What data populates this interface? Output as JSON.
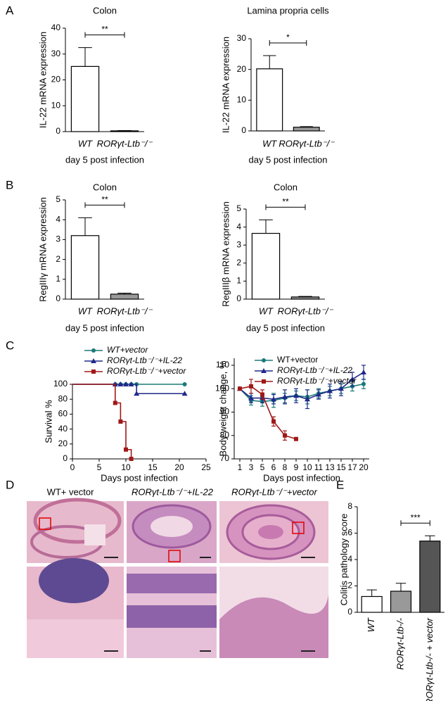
{
  "panels": [
    "A",
    "B",
    "C",
    "D",
    "E"
  ],
  "histology": {
    "labels": [
      "WT+ vector",
      "RORγt-Ltb⁻/⁻+IL-22",
      "RORγt-Ltb⁻/⁻+vector"
    ]
  },
  "chart_data": [
    {
      "type": "bar",
      "title": "Colon",
      "categories": [
        "WT",
        "RORγt-Ltb⁻/⁻"
      ],
      "values": [
        25.2,
        0.3
      ],
      "errors": [
        7.3,
        0.1
      ],
      "colors": [
        "#ffffff",
        "#999999"
      ],
      "ylabel": "IL-22 mRNA expression",
      "xlabel": "day 5 post infection",
      "ylim": [
        0,
        40
      ],
      "yticks": [
        0,
        10,
        20,
        30,
        40
      ],
      "significance": "**"
    },
    {
      "type": "bar",
      "title": "Lamina propria cells",
      "categories": [
        "WT",
        "RORγt-Ltb⁻/⁻"
      ],
      "values": [
        20.2,
        1.2
      ],
      "errors": [
        4.3,
        0.2
      ],
      "colors": [
        "#ffffff",
        "#999999"
      ],
      "ylabel": "IL-22 mRNA expression",
      "xlabel": "day 5 post infection",
      "ylim": [
        0,
        30
      ],
      "yticks": [
        0,
        10,
        20,
        30
      ],
      "significance": "*"
    },
    {
      "type": "bar",
      "title": "Colon",
      "categories": [
        "WT",
        "RORγt-Ltb⁻/⁻"
      ],
      "values": [
        3.2,
        0.25
      ],
      "errors": [
        0.9,
        0.05
      ],
      "colors": [
        "#ffffff",
        "#999999"
      ],
      "ylabel": "RegIIIγ mRNA expression",
      "xlabel": "day 5 post infection",
      "ylim": [
        0,
        5
      ],
      "yticks": [
        0,
        1,
        2,
        3,
        4,
        5
      ],
      "significance": "**"
    },
    {
      "type": "bar",
      "title": "Colon",
      "categories": [
        "WT",
        "RORγt-Ltb⁻/⁻"
      ],
      "values": [
        3.65,
        0.12
      ],
      "errors": [
        0.75,
        0.03
      ],
      "colors": [
        "#ffffff",
        "#999999"
      ],
      "ylabel": "RegIIIβ mRNA expression",
      "xlabel": "day 5 post infection",
      "ylim": [
        0,
        5
      ],
      "yticks": [
        0,
        1,
        2,
        3,
        4,
        5
      ],
      "significance": "**"
    },
    {
      "type": "line",
      "step": true,
      "ylabel": "Survival %",
      "xlabel": "Days post infection",
      "xlim": [
        0,
        25
      ],
      "xticks": [
        0,
        5,
        10,
        15,
        20,
        25
      ],
      "ylim": [
        0,
        100
      ],
      "yticks": [
        0,
        20,
        40,
        60,
        80,
        100
      ],
      "series": [
        {
          "name": "WT+vector",
          "color": "#1b7a78",
          "marker": "circle",
          "x": [
            0,
            8,
            9,
            10,
            11,
            12,
            21
          ],
          "values": [
            100,
            100,
            100,
            100,
            100,
            100,
            100
          ]
        },
        {
          "name": "RORγt-Ltb⁻/⁻+IL-22",
          "color": "#1f2a8a",
          "marker": "triangle",
          "x": [
            0,
            8,
            9,
            10,
            11,
            12,
            21
          ],
          "values": [
            100,
            100,
            100,
            100,
            100,
            87.5,
            87.5
          ]
        },
        {
          "name": "RORγt-Ltb⁻/⁻+vector",
          "color": "#a01818",
          "marker": "square",
          "x": [
            0,
            8,
            9,
            10,
            11
          ],
          "values": [
            100,
            75,
            50,
            12.5,
            0
          ]
        }
      ]
    },
    {
      "type": "line",
      "step": false,
      "ylabel": "Body weight change, %",
      "xlabel": "Days post infection",
      "categories": [
        "1",
        "3",
        "5",
        "6",
        "8",
        "9",
        "10",
        "11",
        "13",
        "15",
        "17",
        "20"
      ],
      "ylim": [
        70,
        113
      ],
      "yticks": [
        70,
        80,
        90,
        100,
        110
      ],
      "series": [
        {
          "name": "WT+vector",
          "color": "#1b7a78",
          "marker": "circle",
          "values": [
            100,
            95,
            94.5,
            95,
            96,
            97,
            96.5,
            98,
            99,
            100,
            101,
            102
          ],
          "errors": [
            0.5,
            2,
            2,
            3,
            2,
            2,
            3,
            2,
            2,
            2,
            2,
            2
          ]
        },
        {
          "name": "RORγt-Ltb⁻/⁻+IL-22",
          "color": "#1f2a8a",
          "marker": "triangle",
          "values": [
            100,
            96,
            96,
            95.5,
            96.5,
            97,
            95.5,
            97.5,
            99,
            100,
            104,
            107
          ],
          "errors": [
            0.5,
            2,
            2,
            2,
            3,
            3,
            4,
            2,
            3,
            3,
            3,
            3
          ]
        },
        {
          "name": "RORγt-Ltb⁻/⁻+vector",
          "color": "#a01818",
          "marker": "square",
          "values": [
            100,
            101,
            97.5,
            86,
            80,
            78.5,
            null,
            null,
            null,
            null,
            null,
            null
          ],
          "errors": [
            0.5,
            3,
            2,
            2,
            2,
            0.5,
            null,
            null,
            null,
            null,
            null,
            null
          ]
        }
      ]
    },
    {
      "type": "bar",
      "rotate_labels": true,
      "categories": [
        "WT",
        "RORγt-Ltb-/-",
        "RORγt-Ltb-/- + vector"
      ],
      "values": [
        1.2,
        1.6,
        5.4
      ],
      "errors": [
        0.5,
        0.6,
        0.4
      ],
      "colors": [
        "#ffffff",
        "#999999",
        "#555555"
      ],
      "ylabel": "Colitis pathology score",
      "ylim": [
        0,
        8
      ],
      "yticks": [
        0,
        2,
        4,
        6,
        8
      ],
      "significance": "***"
    }
  ]
}
